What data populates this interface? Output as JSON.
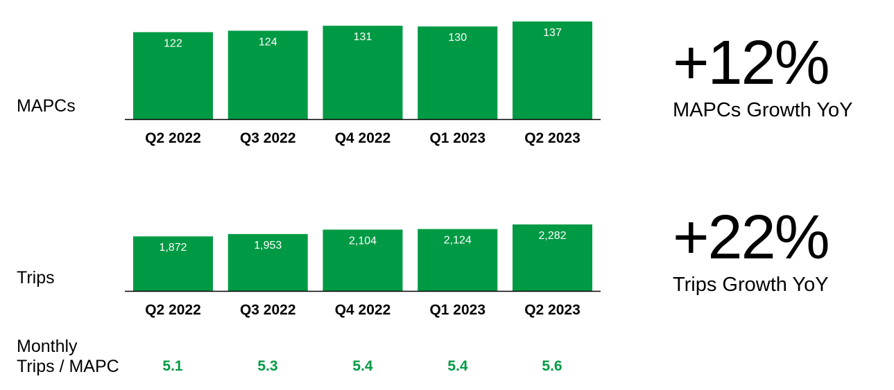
{
  "colors": {
    "bar": "#009a44",
    "axis": "#000000",
    "ratio": "#009a44"
  },
  "mapcs": {
    "label": "MAPCs",
    "kpi_value": "+12%",
    "kpi_caption": "MAPCs Growth YoY"
  },
  "trips": {
    "label": "Trips",
    "kpi_value": "+22%",
    "kpi_caption": "Trips Growth YoY"
  },
  "ratio": {
    "label_line1": "Monthly",
    "label_line2": "Trips / MAPC",
    "values": [
      "5.1",
      "5.3",
      "5.4",
      "5.4",
      "5.6"
    ]
  },
  "chart_data": [
    {
      "type": "bar",
      "categories": [
        "Q2 2022",
        "Q3 2022",
        "Q4 2022",
        "Q1 2023",
        "Q2 2023"
      ],
      "values": [
        122,
        124,
        131,
        130,
        137
      ],
      "value_labels": [
        "122",
        "124",
        "131",
        "130",
        "137"
      ],
      "ylabel": "MAPCs",
      "ylim": [
        0,
        137
      ]
    },
    {
      "type": "bar",
      "categories": [
        "Q2 2022",
        "Q3 2022",
        "Q4 2022",
        "Q1 2023",
        "Q2 2023"
      ],
      "values": [
        1872,
        1953,
        2104,
        2124,
        2282
      ],
      "value_labels": [
        "1,872",
        "1,953",
        "2,104",
        "2,124",
        "2,282"
      ],
      "ylabel": "Trips",
      "ylim": [
        0,
        2282
      ]
    }
  ]
}
